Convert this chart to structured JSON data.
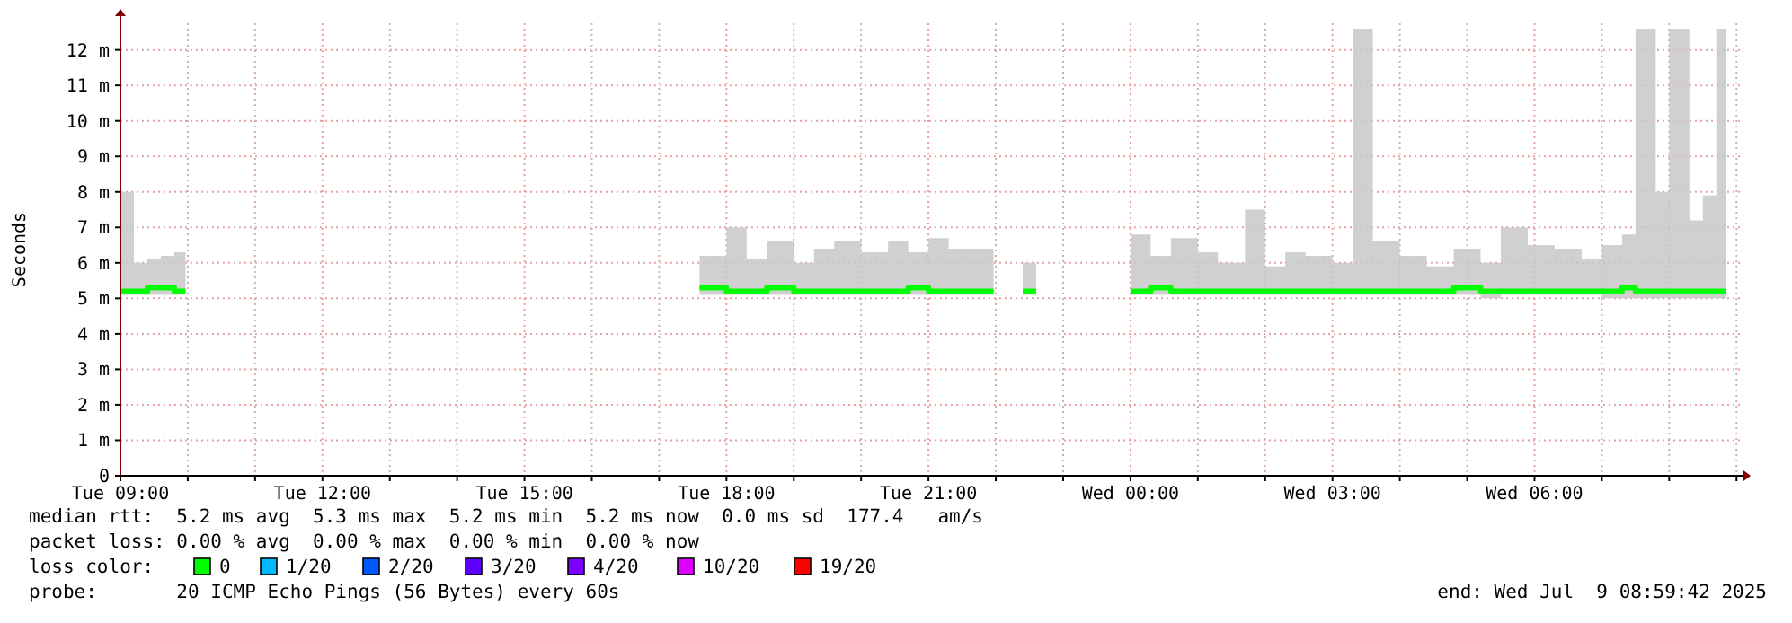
{
  "chart_data": {
    "type": "line",
    "ylabel": "Seconds",
    "legend_title": "loss color:",
    "legend": "bottom",
    "grid": true,
    "marker": "none",
    "line_style": "solid",
    "xlim": [
      "2025-07-08T09:00",
      "2025-07-09T09:03"
    ],
    "xticks": [
      {
        "value": "2025-07-08T09:00",
        "label": "Tue 09:00"
      },
      {
        "value": "2025-07-08T10:00",
        "label": null
      },
      {
        "value": "2025-07-08T11:00",
        "label": null
      },
      {
        "value": "2025-07-08T12:00",
        "label": "Tue 12:00"
      },
      {
        "value": "2025-07-08T13:00",
        "label": null
      },
      {
        "value": "2025-07-08T14:00",
        "label": null
      },
      {
        "value": "2025-07-08T15:00",
        "label": "Tue 15:00"
      },
      {
        "value": "2025-07-08T16:00",
        "label": null
      },
      {
        "value": "2025-07-08T17:00",
        "label": null
      },
      {
        "value": "2025-07-08T18:00",
        "label": "Tue 18:00"
      },
      {
        "value": "2025-07-08T19:00",
        "label": null
      },
      {
        "value": "2025-07-08T20:00",
        "label": null
      },
      {
        "value": "2025-07-08T21:00",
        "label": "Tue 21:00"
      },
      {
        "value": "2025-07-08T22:00",
        "label": null
      },
      {
        "value": "2025-07-08T23:00",
        "label": null
      },
      {
        "value": "2025-07-09T00:00",
        "label": "Wed 00:00"
      },
      {
        "value": "2025-07-09T01:00",
        "label": null
      },
      {
        "value": "2025-07-09T02:00",
        "label": null
      },
      {
        "value": "2025-07-09T03:00",
        "label": "Wed 03:00"
      },
      {
        "value": "2025-07-09T04:00",
        "label": null
      },
      {
        "value": "2025-07-09T05:00",
        "label": null
      },
      {
        "value": "2025-07-09T06:00",
        "label": "Wed 06:00"
      },
      {
        "value": "2025-07-09T07:00",
        "label": null
      },
      {
        "value": "2025-07-09T08:00",
        "label": null
      },
      {
        "value": "2025-07-09T09:00",
        "label": null
      }
    ],
    "ylim": [
      0,
      12.75
    ],
    "yticks": [
      {
        "value": 0,
        "label": "0"
      },
      {
        "value": 1,
        "label": "1 m"
      },
      {
        "value": 2,
        "label": "2 m"
      },
      {
        "value": 3,
        "label": "3 m"
      },
      {
        "value": 4,
        "label": "4 m"
      },
      {
        "value": 5,
        "label": "5 m"
      },
      {
        "value": 6,
        "label": "6 m"
      },
      {
        "value": 7,
        "label": "7 m"
      },
      {
        "value": 8,
        "label": "8 m"
      },
      {
        "value": 9,
        "label": "9 m"
      },
      {
        "value": 10,
        "label": "10 m"
      },
      {
        "value": 11,
        "label": "11 m"
      },
      {
        "value": 12,
        "label": "12 m"
      }
    ],
    "x": [
      "2025-07-08T09:00",
      "2025-07-08T09:12",
      "2025-07-08T09:24",
      "2025-07-08T09:36",
      "2025-07-08T09:48",
      "2025-07-08T09:58",
      "2025-07-08T13:00",
      "2025-07-08T17:36",
      "2025-07-08T18:00",
      "2025-07-08T18:18",
      "2025-07-08T18:36",
      "2025-07-08T19:00",
      "2025-07-08T19:18",
      "2025-07-08T19:36",
      "2025-07-08T20:00",
      "2025-07-08T20:24",
      "2025-07-08T20:42",
      "2025-07-08T21:00",
      "2025-07-08T21:18",
      "2025-07-08T21:36",
      "2025-07-08T21:58",
      "2025-07-08T22:12",
      "2025-07-08T22:24",
      "2025-07-08T22:36",
      "2025-07-08T23:18",
      "2025-07-09T00:00",
      "2025-07-09T00:18",
      "2025-07-09T00:36",
      "2025-07-09T01:00",
      "2025-07-09T01:18",
      "2025-07-09T01:42",
      "2025-07-09T02:00",
      "2025-07-09T02:18",
      "2025-07-09T02:36",
      "2025-07-09T03:00",
      "2025-07-09T03:18",
      "2025-07-09T03:36",
      "2025-07-09T04:00",
      "2025-07-09T04:24",
      "2025-07-09T04:48",
      "2025-07-09T05:12",
      "2025-07-09T05:30",
      "2025-07-09T05:54",
      "2025-07-09T06:18",
      "2025-07-09T06:42",
      "2025-07-09T07:00",
      "2025-07-09T07:18",
      "2025-07-09T07:30",
      "2025-07-09T07:48",
      "2025-07-09T08:00",
      "2025-07-09T08:18",
      "2025-07-09T08:30",
      "2025-07-09T08:42",
      "2025-07-09T08:51"
    ],
    "series": [
      {
        "name": "0",
        "color": "#00ff00",
        "values": [
          5.2,
          5.2,
          5.3,
          5.3,
          5.2,
          5.2,
          null,
          5.3,
          5.2,
          5.2,
          5.3,
          5.2,
          5.2,
          5.2,
          5.2,
          5.2,
          5.3,
          5.2,
          5.2,
          5.2,
          5.2,
          null,
          5.2,
          5.2,
          null,
          5.2,
          5.3,
          5.2,
          5.2,
          5.2,
          5.2,
          5.2,
          5.2,
          5.2,
          5.2,
          5.2,
          5.2,
          5.2,
          5.2,
          5.3,
          5.2,
          5.2,
          5.2,
          5.2,
          5.2,
          5.2,
          5.3,
          5.2,
          5.2,
          5.2,
          5.2,
          5.2,
          5.2,
          5.2
        ],
        "lower": [
          5.1,
          5.1,
          5.1,
          5.1,
          5.1,
          5.1,
          null,
          5.1,
          5.1,
          5.1,
          5.1,
          5.1,
          5.1,
          5.1,
          5.1,
          5.1,
          5.1,
          5.1,
          5.1,
          5.1,
          5.1,
          null,
          5.1,
          5.1,
          null,
          5.1,
          5.1,
          5.1,
          5.1,
          5.1,
          5.1,
          5.1,
          5.1,
          5.1,
          5.1,
          5.1,
          5.1,
          5.1,
          5.1,
          5.1,
          5.0,
          5.1,
          5.1,
          5.1,
          5.1,
          5.0,
          5.0,
          5.0,
          5.0,
          5.0,
          5.0,
          5.0,
          5.0,
          5.0
        ],
        "upper": [
          8.0,
          6.0,
          6.1,
          6.2,
          6.3,
          6.3,
          null,
          6.2,
          7.0,
          6.1,
          6.6,
          6.0,
          6.4,
          6.6,
          6.3,
          6.6,
          6.3,
          6.7,
          6.4,
          6.4,
          6.4,
          null,
          6.0,
          6.0,
          null,
          6.8,
          6.2,
          6.7,
          6.3,
          6.0,
          7.5,
          5.9,
          6.3,
          6.2,
          6.0,
          12.6,
          6.6,
          6.2,
          5.9,
          6.4,
          6.0,
          7.0,
          6.5,
          6.4,
          6.1,
          6.5,
          6.8,
          12.6,
          8.0,
          12.6,
          7.2,
          7.9,
          12.6,
          12.6
        ]
      },
      {
        "name": "1/20",
        "color": "#00b8ff",
        "values": [
          null,
          null,
          null,
          null,
          null,
          null,
          null,
          null,
          null,
          null,
          null,
          null,
          null,
          null,
          null,
          null,
          null,
          null,
          null,
          null,
          null,
          null,
          null,
          null,
          null,
          null,
          null,
          null,
          null,
          null,
          null,
          null,
          null,
          null,
          null,
          null,
          null,
          null,
          null,
          null,
          null,
          null,
          null,
          null,
          null,
          null,
          null,
          null,
          null,
          null,
          null,
          null,
          null,
          null
        ]
      },
      {
        "name": "2/20",
        "color": "#0059ff",
        "values": [
          null,
          null,
          null,
          null,
          null,
          null,
          null,
          null,
          null,
          null,
          null,
          null,
          null,
          null,
          null,
          null,
          null,
          null,
          null,
          null,
          null,
          null,
          null,
          null,
          null,
          null,
          null,
          null,
          null,
          null,
          null,
          null,
          null,
          null,
          null,
          null,
          null,
          null,
          null,
          null,
          null,
          null,
          null,
          null,
          null,
          null,
          null,
          null,
          null,
          null,
          null,
          null,
          null,
          null
        ]
      },
      {
        "name": "3/20",
        "color": "#5e00ff",
        "values": [
          null,
          null,
          null,
          null,
          null,
          null,
          null,
          null,
          null,
          null,
          null,
          null,
          null,
          null,
          null,
          null,
          null,
          null,
          null,
          null,
          null,
          null,
          null,
          null,
          null,
          null,
          null,
          null,
          null,
          null,
          null,
          null,
          null,
          null,
          null,
          null,
          null,
          null,
          null,
          null,
          null,
          null,
          null,
          null,
          null,
          null,
          null,
          null,
          null,
          null,
          null,
          null,
          null,
          null
        ]
      },
      {
        "name": "4/20",
        "color": "#7e00ff",
        "values": [
          null,
          null,
          null,
          null,
          null,
          null,
          null,
          null,
          null,
          null,
          null,
          null,
          null,
          null,
          null,
          null,
          null,
          null,
          null,
          null,
          null,
          null,
          null,
          null,
          null,
          null,
          null,
          null,
          null,
          null,
          null,
          null,
          null,
          null,
          null,
          null,
          null,
          null,
          null,
          null,
          null,
          null,
          null,
          null,
          null,
          null,
          null,
          null,
          null,
          null,
          null,
          null,
          null,
          null
        ]
      },
      {
        "name": "10/20",
        "color": "#dd00ff",
        "values": [
          null,
          null,
          null,
          null,
          null,
          null,
          null,
          null,
          null,
          null,
          null,
          null,
          null,
          null,
          null,
          null,
          null,
          null,
          null,
          null,
          null,
          null,
          null,
          null,
          null,
          null,
          null,
          null,
          null,
          null,
          null,
          null,
          null,
          null,
          null,
          null,
          null,
          null,
          null,
          null,
          null,
          null,
          null,
          null,
          null,
          null,
          null,
          null,
          null,
          null,
          null,
          null,
          null,
          null
        ]
      },
      {
        "name": "19/20",
        "color": "#ff0000",
        "values": [
          null,
          null,
          null,
          null,
          null,
          null,
          null,
          null,
          null,
          null,
          null,
          null,
          null,
          null,
          null,
          null,
          null,
          null,
          null,
          null,
          null,
          null,
          null,
          null,
          null,
          null,
          null,
          null,
          null,
          null,
          null,
          null,
          null,
          null,
          null,
          null,
          null,
          null,
          null,
          null,
          null,
          null,
          null,
          null,
          null,
          null,
          null,
          null,
          null,
          null,
          null,
          null,
          null,
          null
        ]
      }
    ],
    "annotations": [
      "median rtt:  5.2 ms avg  5.3 ms max  5.2 ms min  5.2 ms now  0.0 ms sd  177.4   am/s",
      "packet loss: 0.00 % avg  0.00 % max  0.00 % min  0.00 % now",
      "probe:       20 ICMP Echo Pings (56 Bytes) every 60s",
      "end: Wed Jul  9 08:59:42 2025"
    ]
  }
}
